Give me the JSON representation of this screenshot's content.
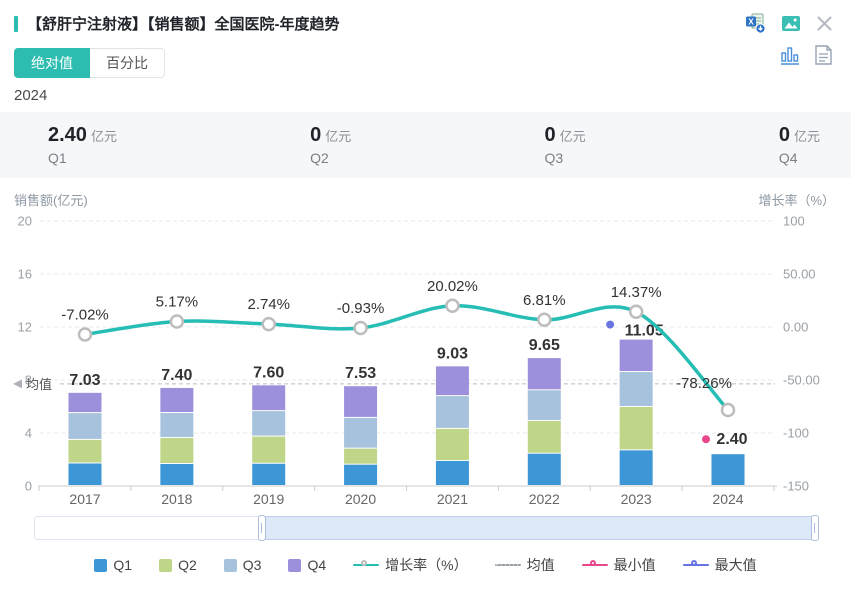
{
  "header": {
    "title": "【舒肝宁注射液】【销售额】全国医院-年度趋势",
    "icons": [
      "excel-export-icon",
      "image-export-icon",
      "close-icon"
    ]
  },
  "toolbar": {
    "absolute_label": "绝对值",
    "percent_label": "百分比",
    "view_icons": [
      "bar-chart-view-icon",
      "report-view-icon"
    ]
  },
  "year_label": "2024",
  "stats": [
    {
      "value": "2.40",
      "unit": "亿元",
      "label": "Q1"
    },
    {
      "value": "0",
      "unit": "亿元",
      "label": "Q2"
    },
    {
      "value": "0",
      "unit": "亿元",
      "label": "Q3"
    },
    {
      "value": "0",
      "unit": "亿元",
      "label": "Q4"
    }
  ],
  "colors": {
    "accent_teal": "#2CBDB0",
    "growth_line": "#26BDB4",
    "q1_blue": "#3D96D5",
    "q2_green": "#BFD588",
    "q3_lightblue": "#A6C2DD",
    "q4_purple": "#9C90DC",
    "min_pink": "#E8478B",
    "max_violet": "#6673E0"
  },
  "chart_data": {
    "type": "bar",
    "subtype": "stacked-bars-with-growth-line",
    "categories": [
      "2017",
      "2018",
      "2019",
      "2020",
      "2021",
      "2022",
      "2023",
      "2024"
    ],
    "series": [
      {
        "name": "Q1",
        "color": "#3D96D5",
        "values": [
          1.7,
          1.66,
          1.68,
          1.61,
          1.89,
          2.44,
          2.69,
          2.4
        ]
      },
      {
        "name": "Q2",
        "color": "#BFD588",
        "values": [
          1.78,
          1.96,
          2.05,
          1.21,
          2.42,
          2.47,
          3.27,
          0
        ]
      },
      {
        "name": "Q3",
        "color": "#A6C2DD",
        "values": [
          2.02,
          1.89,
          1.92,
          2.32,
          2.47,
          2.31,
          2.64,
          0
        ]
      },
      {
        "name": "Q4",
        "color": "#9C90DC",
        "values": [
          1.53,
          1.89,
          1.95,
          2.39,
          2.25,
          2.43,
          2.45,
          0
        ]
      }
    ],
    "totals": [
      7.03,
      7.4,
      7.6,
      7.53,
      9.03,
      9.65,
      11.05,
      2.4
    ],
    "growth": {
      "name": "增长率（%）",
      "color": "#26BDB4",
      "values_pct": [
        -7.02,
        5.17,
        2.74,
        -0.93,
        20.02,
        6.81,
        14.37,
        -78.26
      ],
      "labels": [
        "-7.02%",
        "5.17%",
        "2.74%",
        "-0.93%",
        "20.02%",
        "6.81%",
        "14.37%",
        "-78.26%"
      ]
    },
    "mean": {
      "label": "均值",
      "value": 7.71
    },
    "max_marker": {
      "category": "2023",
      "value": "11.05",
      "color": "#6673E0",
      "label": "最大值"
    },
    "min_marker": {
      "category": "2024",
      "value": "2.40",
      "color": "#E8478B",
      "label": "最小值"
    },
    "left_axis": {
      "title": "销售额(亿元)",
      "ticks": [
        "20",
        "16",
        "12",
        "8",
        "4",
        "0"
      ],
      "max": 20,
      "min": 0
    },
    "right_axis": {
      "title": "增长率（%）",
      "ticks": [
        "100",
        "50.00",
        "0.00",
        "-50.00",
        "-100",
        "-150"
      ],
      "max": 100,
      "min": -150
    },
    "grid": "dashed-horizontal"
  },
  "data_zoom": {
    "selected_start_pct": 29,
    "selected_end_pct": 100
  },
  "legend": {
    "items": [
      {
        "label": "Q1",
        "type": "square",
        "color": "#3D96D5"
      },
      {
        "label": "Q2",
        "type": "square",
        "color": "#BFD588"
      },
      {
        "label": "Q3",
        "type": "square",
        "color": "#A6C2DD"
      },
      {
        "label": "Q4",
        "type": "square",
        "color": "#9C90DC"
      },
      {
        "label": "增长率（%）",
        "type": "line-marker",
        "color": "#26BDB4",
        "marker": "#bdbdbd"
      },
      {
        "label": "均值",
        "type": "dashed",
        "color": "#9aa0a6"
      },
      {
        "label": "最小值",
        "type": "line-marker",
        "color": "#E8478B",
        "marker": "#E8478B"
      },
      {
        "label": "最大值",
        "type": "line-marker",
        "color": "#6673E0",
        "marker": "#6673E0"
      }
    ]
  }
}
